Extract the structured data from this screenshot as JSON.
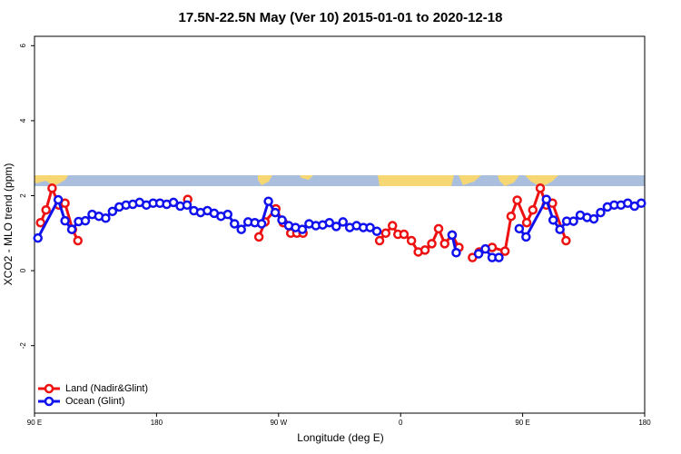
{
  "chart_data": {
    "type": "line",
    "title": "17.5N-22.5N May (Ver 10)   2015-01-01 to 2020-12-18",
    "x_label": "Longitude (deg E)",
    "y_label": "XCO2 - MLO trend (ppm)",
    "xlim": [
      90,
      540
    ],
    "xticks": [
      {
        "value": 90,
        "label": "90 E"
      },
      {
        "value": 180,
        "label": "180"
      },
      {
        "value": 270,
        "label": "90 W"
      },
      {
        "value": 360,
        "label": "0"
      },
      {
        "value": 450,
        "label": "90 E"
      },
      {
        "value": 540,
        "label": "180"
      }
    ],
    "ylim": [
      -3.8,
      6.25
    ],
    "yticks": [
      -2,
      0,
      2,
      4,
      6
    ],
    "legend": "bottomleft",
    "series": [
      {
        "name": "Land (Nadir&Glint)",
        "color": "#ee1111",
        "x": [
          94.5,
          98.5,
          103,
          108,
          112.5,
          118,
          122,
          null,
          203,
          null,
          255.5,
          260,
          268,
          273.5,
          279,
          283.5,
          288,
          null,
          344.5,
          349,
          354,
          358,
          362.5,
          368,
          373,
          378,
          383,
          388,
          392.5,
          398,
          403,
          null,
          413,
          418,
          427.5,
          437,
          441.5,
          446,
          453,
          457.5,
          463,
          467.5,
          472,
          482
        ],
        "values": [
          1.28,
          1.62,
          2.2,
          1.75,
          1.8,
          1.1,
          0.8,
          null,
          1.9,
          null,
          0.9,
          1.3,
          1.65,
          1.28,
          1.0,
          1.0,
          1.0,
          null,
          0.8,
          1.0,
          1.2,
          0.97,
          0.97,
          0.8,
          0.5,
          0.55,
          0.72,
          1.12,
          0.72,
          0.95,
          0.62,
          null,
          0.35,
          0.5,
          0.62,
          0.52,
          1.45,
          1.88,
          1.28,
          1.62,
          2.2,
          1.75,
          1.8,
          0.8
        ]
      },
      {
        "name": "Ocean (Glint)",
        "color": "#1111ee",
        "x": [
          92.5,
          107.5,
          112.5,
          117.5,
          122.5,
          127.5,
          132.5,
          137.5,
          142.5,
          147.5,
          152.5,
          157.5,
          162.5,
          167.5,
          172.5,
          177.5,
          182.5,
          187.5,
          192.5,
          197.5,
          202.5,
          207.5,
          212.5,
          217.5,
          222.5,
          227.5,
          232.5,
          237.5,
          242.5,
          247.5,
          252.5,
          257.5,
          262.5,
          267.5,
          272.5,
          277.5,
          282.5,
          287.5,
          292.5,
          297.5,
          302.5,
          307.5,
          312.5,
          317.5,
          322.5,
          327.5,
          332.5,
          337.5,
          342.5,
          null,
          398,
          401,
          null,
          417.5,
          422.5,
          427.5,
          432.5,
          null,
          447.5,
          452.5,
          467.5,
          472.5,
          477.5,
          482.5,
          487.5,
          492.5,
          497.5,
          502.5,
          507.5,
          512.5,
          517.5,
          522.5,
          527.5,
          532.5,
          537.5
        ],
        "values": [
          0.87,
          1.89,
          1.33,
          1.1,
          1.31,
          1.33,
          1.5,
          1.45,
          1.4,
          1.58,
          1.7,
          1.75,
          1.77,
          1.82,
          1.75,
          1.8,
          1.8,
          1.77,
          1.82,
          1.72,
          1.75,
          1.6,
          1.55,
          1.6,
          1.53,
          1.45,
          1.5,
          1.25,
          1.1,
          1.3,
          1.28,
          1.25,
          1.85,
          1.55,
          1.35,
          1.2,
          1.15,
          1.1,
          1.25,
          1.2,
          1.22,
          1.28,
          1.18,
          1.3,
          1.15,
          1.2,
          1.15,
          1.15,
          1.05,
          null,
          0.95,
          0.48,
          null,
          0.45,
          0.58,
          0.35,
          0.35,
          null,
          1.12,
          0.9,
          1.9,
          1.35,
          1.1,
          1.32,
          1.32,
          1.48,
          1.42,
          1.38,
          1.55,
          1.7,
          1.75,
          1.75,
          1.8,
          1.72,
          1.8
        ]
      }
    ]
  }
}
